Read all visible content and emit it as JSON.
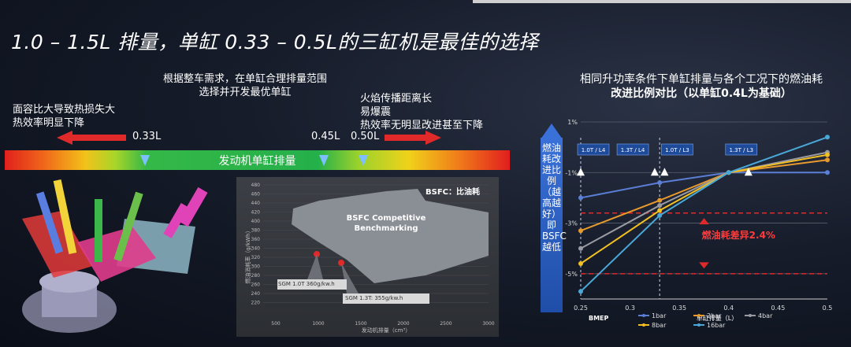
{
  "title": "1.0 – 1.5L 排量，单缸 0.33 – 0.5L的三缸机是最佳的选择",
  "center_desc": [
    "根据整车需求，在单缸合理排量范围",
    "选择并开发最优单缸"
  ],
  "left_desc": [
    "面容比大导致热损失大",
    "热效率明显下降"
  ],
  "right_desc": [
    "火焰传播距离长",
    "易爆震",
    "热效率无明显改进甚至下降"
  ],
  "markers": [
    "0.33L",
    "0.45L",
    "0.50L"
  ],
  "band_label": "发动机单缸排量",
  "bsfc_panel": {
    "tag": "BSFC：比油耗",
    "box_text": [
      "BSFC Competitive",
      "Benchmarking"
    ],
    "y_axis": "燃油消耗率（g/kWh）",
    "x_axis": "发动机排量（cm³）",
    "y_ticks": [
      "480",
      "460",
      "440",
      "420",
      "400",
      "380",
      "360",
      "340",
      "320",
      "300",
      "280",
      "260",
      "240",
      "220"
    ],
    "x_ticks": [
      "500",
      "1000",
      "1500",
      "2000",
      "2500",
      "3000"
    ],
    "callouts": [
      "SGM 1.0T 360g/kw.h",
      "SGM 1.3T: 355g/kw.h"
    ]
  },
  "right_title": [
    "相同升功率条件下单缸排量与各个工况下的燃油耗",
    "改进比例对比（以单缸0.4L为基础）"
  ],
  "vertical_label": "燃油耗改进比例（越高越好）即 BSFC 越低",
  "annotation": "燃油耗差异2.4%",
  "colors": {
    "accent_red": "#e02a2a",
    "axis_blue": "#3a71d8",
    "marker_blue": "#7ec0ff"
  },
  "chart_data": {
    "type": "line",
    "xlabel": "单缸排量（L）",
    "ylabel": "",
    "x_ticks": [
      "0.25",
      "0.3",
      "0.35",
      "0.4",
      "0.45",
      "0.5"
    ],
    "y_ticks": [
      "1%",
      "-1%",
      "-3%",
      "-5%"
    ],
    "xlim": [
      0.25,
      0.5
    ],
    "ylim": [
      -6,
      1
    ],
    "grid": true,
    "boxes": [
      "1.0T / L4",
      "1.3T / L4",
      "1.0T / L3",
      "1.3T / L3"
    ],
    "legend_title": "BMEP",
    "x": [
      0.25,
      0.33,
      0.4,
      0.5
    ],
    "series": [
      {
        "name": "1bar",
        "color": "#5b7fd6",
        "values": [
          -2.0,
          -1.4,
          -1.0,
          -1.0
        ]
      },
      {
        "name": "2bar",
        "color": "#e89a2e",
        "values": [
          -3.3,
          -2.1,
          -1.0,
          -0.5
        ]
      },
      {
        "name": "4bar",
        "color": "#9a9aa2",
        "values": [
          -4.0,
          -2.3,
          -1.0,
          -0.2
        ]
      },
      {
        "name": "8bar",
        "color": "#f2c022",
        "values": [
          -4.6,
          -2.5,
          -1.0,
          -0.3
        ]
      },
      {
        "name": "16bar",
        "color": "#4aa8d8",
        "values": [
          -5.7,
          -2.7,
          -1.0,
          0.4
        ]
      }
    ],
    "triangles": [
      {
        "x": 0.25,
        "y": -1.0
      },
      {
        "x": 0.325,
        "y": -1.0
      },
      {
        "x": 0.335,
        "y": -1.0
      },
      {
        "x": 0.42,
        "y": -1.0
      }
    ]
  }
}
